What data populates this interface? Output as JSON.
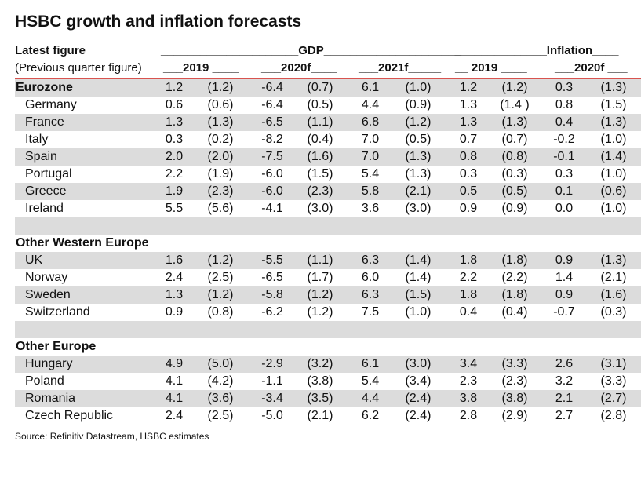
{
  "title": "HSBC growth and inflation forecasts",
  "header": {
    "latest": "Latest figure",
    "previous": "(Previous quarter figure)",
    "gdp": "_____________________GDP_____________________",
    "inflation": "______________Inflation____",
    "gdp_2019": "___2019 ____",
    "gdp_2020f": "___2020f____",
    "gdp_2021f": "___2021f_____",
    "inf_2019": "__ 2019 ____",
    "inf_2020f": "___2020f ___"
  },
  "rows": [
    {
      "label": "Eurozone",
      "group": true,
      "values": [
        "1.2",
        "(1.2)",
        "-6.4",
        "(0.7)",
        "6.1",
        "(1.0)",
        "1.2",
        "(1.2)",
        "0.3",
        "(1.3)"
      ]
    },
    {
      "label": "Germany",
      "values": [
        "0.6",
        "(0.6)",
        "-6.4",
        "(0.5)",
        "4.4",
        "(0.9)",
        "1.3",
        "(1.4 )",
        "0.8",
        "(1.5)"
      ]
    },
    {
      "label": "France",
      "values": [
        "1.3",
        "(1.3)",
        "-6.5",
        "(1.1)",
        "6.8",
        "(1.2)",
        "1.3",
        "(1.3)",
        "0.4",
        "(1.3)"
      ]
    },
    {
      "label": "Italy",
      "values": [
        "0.3",
        "(0.2)",
        "-8.2",
        "(0.4)",
        "7.0",
        "(0.5)",
        "0.7",
        "(0.7)",
        "-0.2",
        "(1.0)"
      ]
    },
    {
      "label": "Spain",
      "values": [
        "2.0",
        "(2.0)",
        "-7.5",
        "(1.6)",
        "7.0",
        "(1.3)",
        "0.8",
        "(0.8)",
        "-0.1",
        "(1.4)"
      ]
    },
    {
      "label": "Portugal",
      "values": [
        "2.2",
        "(1.9)",
        "-6.0",
        "(1.5)",
        "5.4",
        "(1.3)",
        "0.3",
        "(0.3)",
        "0.3",
        "(1.0)"
      ]
    },
    {
      "label": "Greece",
      "values": [
        "1.9",
        "(2.3)",
        "-6.0",
        "(2.3)",
        "5.8",
        "(2.1)",
        "0.5",
        "(0.5)",
        "0.1",
        "(0.6)"
      ]
    },
    {
      "label": "Ireland",
      "values": [
        "5.5",
        "(5.6)",
        "-4.1",
        "(3.0)",
        "3.6",
        "(3.0)",
        "0.9",
        "(0.9)",
        "0.0",
        "(1.0)"
      ]
    },
    {
      "label": "",
      "blank": true,
      "values": []
    },
    {
      "label": "Other Western Europe",
      "group": true,
      "values": []
    },
    {
      "label": "UK",
      "values": [
        "1.6",
        "(1.2)",
        "-5.5",
        "(1.1)",
        "6.3",
        "(1.4)",
        "1.8",
        "(1.8)",
        "0.9",
        "(1.3)"
      ]
    },
    {
      "label": "Norway",
      "values": [
        "2.4",
        "(2.5)",
        "-6.5",
        "(1.7)",
        "6.0",
        "(1.4)",
        "2.2",
        "(2.2)",
        "1.4",
        "(2.1)"
      ]
    },
    {
      "label": "Sweden",
      "values": [
        "1.3",
        "(1.2)",
        "-5.8",
        "(1.2)",
        "6.3",
        "(1.5)",
        "1.8",
        "(1.8)",
        "0.9",
        "(1.6)"
      ]
    },
    {
      "label": "Switzerland",
      "values": [
        "0.9",
        "(0.8)",
        "-6.2",
        "(1.2)",
        "7.5",
        "(1.0)",
        "0.4",
        "(0.4)",
        "-0.7",
        "(0.3)"
      ]
    },
    {
      "label": "",
      "blank": true,
      "values": []
    },
    {
      "label": "Other Europe",
      "group": true,
      "values": []
    },
    {
      "label": "Hungary",
      "values": [
        "4.9",
        "(5.0)",
        "-2.9",
        "(3.2)",
        "6.1",
        "(3.0)",
        "3.4",
        "(3.3)",
        "2.6",
        "(3.1)"
      ]
    },
    {
      "label": "Poland",
      "values": [
        "4.1",
        "(4.2)",
        "-1.1",
        "(3.8)",
        "5.4",
        "(3.4)",
        "2.3",
        "(2.3)",
        "3.2",
        "(3.3)"
      ]
    },
    {
      "label": "Romania",
      "values": [
        "4.1",
        "(3.6)",
        "-3.4",
        "(3.5)",
        "4.4",
        "(2.4)",
        "3.8",
        "(3.8)",
        "2.1",
        "(2.7)"
      ]
    },
    {
      "label": "Czech Republic",
      "values": [
        "2.4",
        "(2.5)",
        "-5.0",
        "(2.1)",
        "6.2",
        "(2.4)",
        "2.8",
        "(2.9)",
        "2.7",
        "(2.8)"
      ]
    }
  ],
  "source": "Source: Refinitiv Datastream, HSBC estimates",
  "colors": {
    "row_grey": "#dcdcdc",
    "rule": "#d9534f"
  }
}
